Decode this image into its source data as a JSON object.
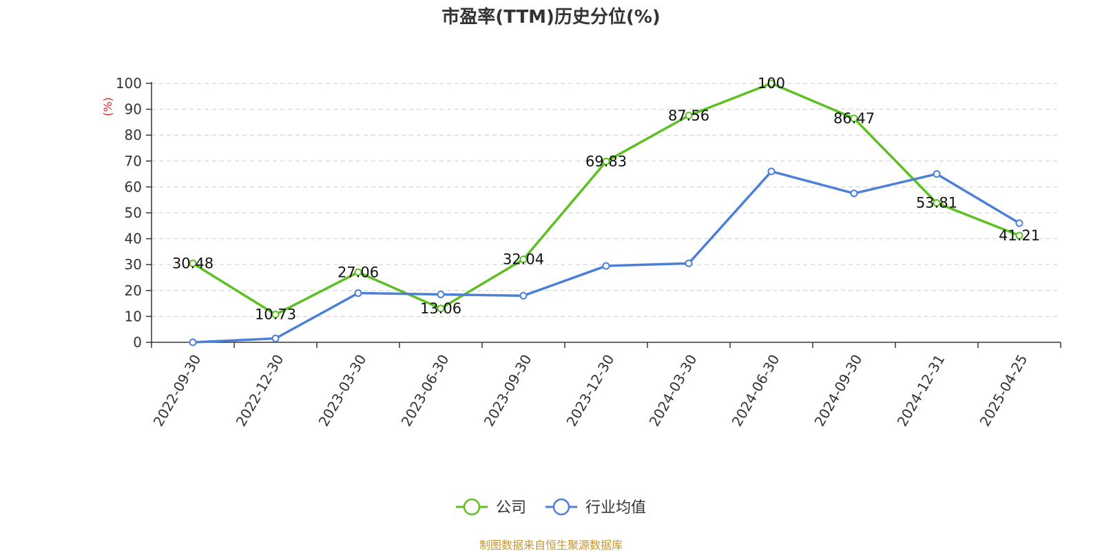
{
  "chart_data": {
    "type": "line",
    "title": "市盈率(TTM)历史分位(%)",
    "ylabel": "(%)",
    "xlabel": "",
    "ylim": [
      0,
      100
    ],
    "yticks": [
      0,
      10,
      20,
      30,
      40,
      50,
      60,
      70,
      80,
      90,
      100
    ],
    "grid": true,
    "legend_position": "bottom-center",
    "categories": [
      "2022-09-30",
      "2022-12-30",
      "2023-03-30",
      "2023-06-30",
      "2023-09-30",
      "2023-12-30",
      "2024-03-30",
      "2024-06-30",
      "2024-09-30",
      "2024-12-31",
      "2025-04-25"
    ],
    "series": [
      {
        "name": "公司",
        "color": "#5cbf22",
        "show_labels": true,
        "values": [
          30.48,
          10.73,
          27.06,
          13.06,
          32.04,
          69.83,
          87.56,
          100,
          86.47,
          53.81,
          41.21
        ],
        "labels": [
          "30.48",
          "10.73",
          "27.06",
          "13.06",
          "32.04",
          "69.83",
          "87.56",
          "100",
          "86.47",
          "53.81",
          "41.21"
        ]
      },
      {
        "name": "行业均值",
        "color": "#4b7fd9",
        "show_labels": false,
        "values": [
          0,
          1.5,
          19,
          18.5,
          18,
          29.5,
          30.5,
          66,
          57.5,
          65,
          46
        ]
      }
    ],
    "source": "制图数据来自恒生聚源数据库",
    "source_color": "#c8962d",
    "ylabel_color": "#e02020"
  }
}
